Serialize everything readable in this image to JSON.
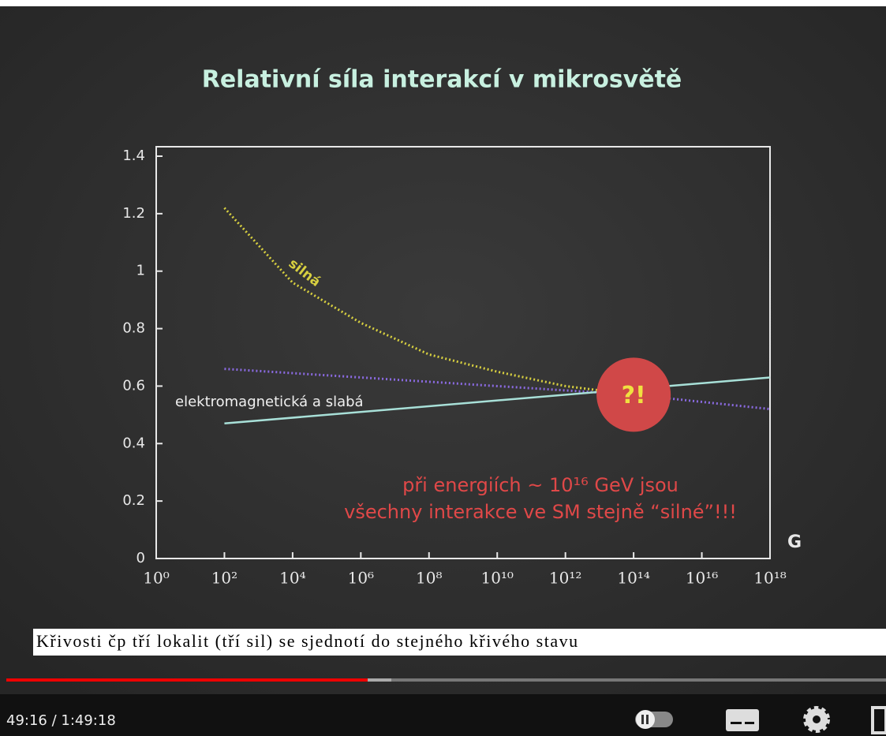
{
  "chart_data": {
    "type": "line",
    "title": "Relativní síla interakcí v mikrosvětě",
    "xlabel": "G",
    "log_x": true,
    "xlim": [
      1,
      1e+18
    ],
    "xticks": [
      {
        "value": 1,
        "label": "10⁰"
      },
      {
        "value": 100,
        "label": "10²"
      },
      {
        "value": 10000,
        "label": "10⁴"
      },
      {
        "value": 1000000,
        "label": "10⁶"
      },
      {
        "value": 100000000,
        "label": "10⁸"
      },
      {
        "value": 10000000000,
        "label": "10¹⁰"
      },
      {
        "value": 1000000000000,
        "label": "10¹²"
      },
      {
        "value": 100000000000000,
        "label": "10¹⁴"
      },
      {
        "value": 10000000000000000,
        "label": "10¹⁶"
      },
      {
        "value": 1000000000000000000,
        "label": "10¹⁸"
      }
    ],
    "ylim": [
      0,
      1.4
    ],
    "yticks": [
      0,
      0.2,
      0.4,
      0.6,
      0.8,
      1,
      1.2,
      1.4
    ],
    "series": [
      {
        "name": "silná",
        "color": "#d8d040",
        "dash": true,
        "x": [
          100,
          10000,
          1000000,
          100000000,
          10000000000,
          1000000000000,
          100000000000000
        ],
        "values": [
          1.22,
          0.96,
          0.82,
          0.71,
          0.65,
          0.6,
          0.57
        ]
      },
      {
        "color": "#8a6ae0",
        "dash": true,
        "x": [
          100,
          100000000000000,
          1000000000000000000
        ],
        "values": [
          0.66,
          0.57,
          0.52
        ]
      },
      {
        "name": "elektromagnetická a slabá",
        "color": "#a8e0d8",
        "dash": false,
        "x": [
          100,
          1000000000000000000
        ],
        "values": [
          0.47,
          0.63
        ]
      }
    ],
    "marker": {
      "text": "?!",
      "x": 100000000000000,
      "y": 0.57,
      "color": "#d04848"
    },
    "annotation": [
      "při energiích ~ 10¹⁶ GeV jsou",
      "všechny interakce ve SM stejně “silné”!!!"
    ]
  },
  "caption": "Křivosti čp tří lokalit (tří sil) se sjednotí do stejného křivého stavu",
  "player": {
    "time": "49:16 / 1:49:18"
  }
}
